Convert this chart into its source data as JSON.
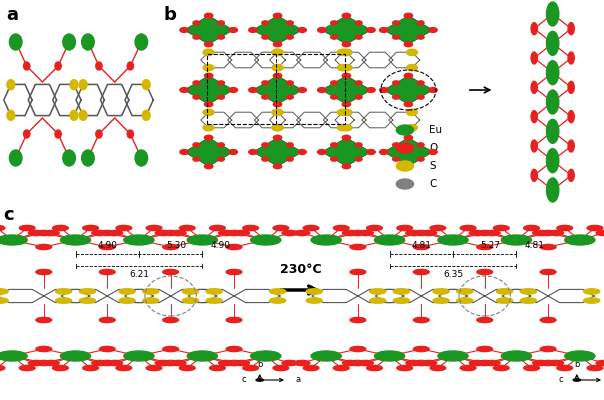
{
  "bg_color": "#ffffff",
  "green": "#1a9622",
  "red": "#e8201e",
  "yellow": "#d4b800",
  "gray": "#808080",
  "darkgray": "#555555",
  "panel_labels": [
    "a",
    "b",
    "c"
  ],
  "label_fontsize": 13,
  "arrow_text": "230°C",
  "legend_items": [
    {
      "label": "Eu",
      "color": "#1a9622"
    },
    {
      "label": "O",
      "color": "#e8201e"
    },
    {
      "label": "S",
      "color": "#d4b800"
    },
    {
      "label": "C",
      "color": "#808080"
    }
  ],
  "measurements_left": [
    "4.90",
    "6.21",
    "5.30",
    "4.90"
  ],
  "measurements_right": [
    "4.81",
    "6.35",
    "5.27",
    "4.81"
  ],
  "fig_width": 6.04,
  "fig_height": 4.0,
  "dpi": 100
}
